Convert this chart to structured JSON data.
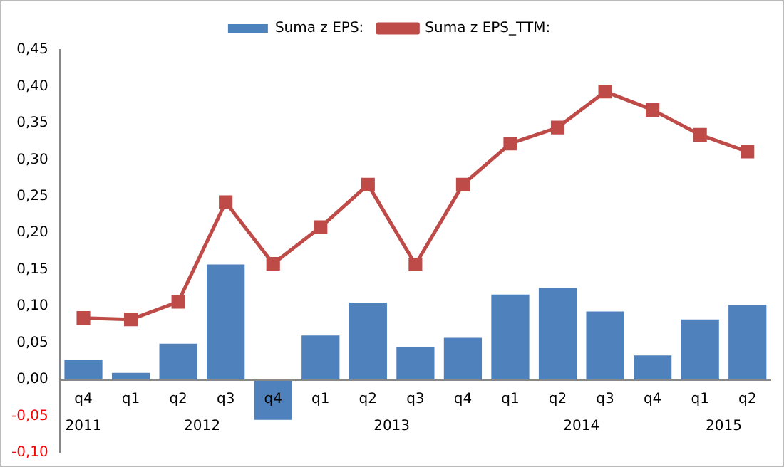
{
  "chart_data": {
    "type": "bar",
    "categories": [
      "q4",
      "q1",
      "q2",
      "q3",
      "q4",
      "q1",
      "q2",
      "q3",
      "q4",
      "q1",
      "q2",
      "q3",
      "q4",
      "q1",
      "q2"
    ],
    "series": [
      {
        "name": "Suma z EPS:",
        "color": "#4f81bd",
        "values": [
          0.027,
          0.009,
          0.049,
          0.157,
          -0.055,
          0.06,
          0.105,
          0.044,
          0.057,
          0.116,
          0.125,
          0.093,
          0.033,
          0.082,
          0.102
        ]
      },
      {
        "name": "Suma z EPS_TTM:",
        "type": "line",
        "color": "#be4b48",
        "values": [
          0.084,
          0.082,
          0.106,
          0.242,
          0.158,
          0.208,
          0.266,
          0.157,
          0.266,
          0.322,
          0.344,
          0.393,
          0.368,
          0.334,
          0.311
        ]
      }
    ],
    "annotations": [
      "2011",
      "2012",
      "2013",
      "2014",
      "2015"
    ],
    "ylim": [
      -0.1,
      0.45
    ],
    "yticks": [
      {
        "value": -0.1,
        "label": "-0,10"
      },
      {
        "value": -0.05,
        "label": "-0,05"
      },
      {
        "value": 0,
        "label": "0,00"
      },
      {
        "value": 0.05,
        "label": "0,05"
      },
      {
        "value": 0.1,
        "label": "0,10"
      },
      {
        "value": 0.15,
        "label": "0,15"
      },
      {
        "value": 0.2,
        "label": "0,20"
      },
      {
        "value": 0.25,
        "label": "0,25"
      },
      {
        "value": 0.3,
        "label": "0,30"
      },
      {
        "value": 0.35,
        "label": "0,35"
      },
      {
        "value": 0.4,
        "label": "0,40"
      },
      {
        "value": 0.45,
        "label": "0,45"
      }
    ],
    "grid": false,
    "legend": "top",
    "marker": "square"
  }
}
